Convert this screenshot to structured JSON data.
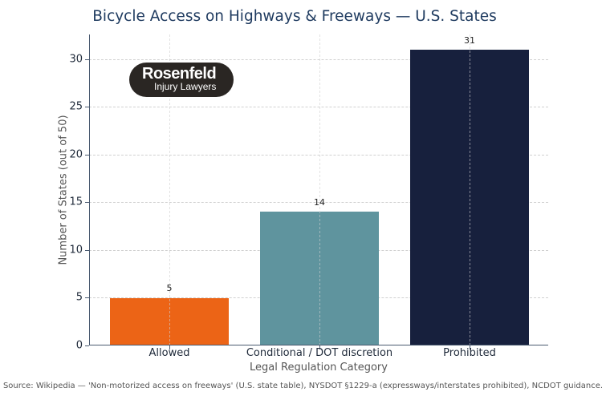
{
  "chart_data": {
    "type": "bar",
    "title": "Bicycle Access on Highways & Freeways — U.S. States",
    "xlabel": "Legal Regulation Category",
    "ylabel": "Number of States (out of 50)",
    "categories": [
      "Allowed",
      "Conditional / DOT discretion",
      "Prohibited"
    ],
    "values": [
      5,
      14,
      31
    ],
    "colors": [
      "#ec6416",
      "#5f949e",
      "#17203d"
    ],
    "data_labels": [
      "5",
      "14",
      "31"
    ],
    "ylim": [
      0,
      32.6
    ],
    "yticks": [
      0,
      5,
      10,
      15,
      20,
      25,
      30
    ],
    "grid": true,
    "legend": null
  },
  "logo": {
    "name": "Rosenfeld",
    "subtitle": "Injury Lawyers"
  },
  "source": "Source: Wikipedia — 'Non-motorized access on freeways' (U.S. state table), NYSDOT §1229-a (expressways/interstates prohibited), NCDOT guidance."
}
